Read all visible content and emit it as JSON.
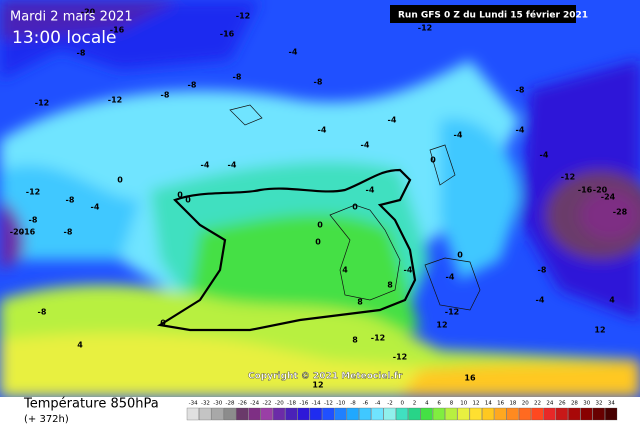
{
  "header": {
    "date": "Mardi 2 mars 2021",
    "time": "13:00 locale",
    "run": "Run GFS 0 Z du Lundi 15 février 2021"
  },
  "footer": {
    "title": "Température 850hPa",
    "subtitle": "(+ 372h)"
  },
  "copyright": "Copyright © 2021 Meteociel.fr",
  "legend": {
    "ticks": [
      -34,
      -32,
      -30,
      -28,
      -26,
      -24,
      -22,
      -20,
      -18,
      -16,
      -14,
      -12,
      -10,
      -8,
      -6,
      -4,
      -2,
      0,
      2,
      4,
      6,
      8,
      10,
      12,
      14,
      16,
      18,
      20,
      22,
      24,
      26,
      28,
      30,
      32,
      34
    ],
    "colors": [
      "#e0e0e0",
      "#c4c4c4",
      "#a8a8a8",
      "#8c8c8c",
      "#6a3a6a",
      "#7e2f84",
      "#9a3fa6",
      "#6c2ba8",
      "#4a22b8",
      "#2e18d8",
      "#1f2cf0",
      "#2050ff",
      "#2080ff",
      "#20a8ff",
      "#40c8ff",
      "#70e4ff",
      "#90f0ec",
      "#40e0c0",
      "#28d488",
      "#44e044",
      "#80ee40",
      "#b8f040",
      "#e8f040",
      "#ffe030",
      "#ffc820",
      "#ffa820",
      "#ff8a20",
      "#ff6a20",
      "#ff4820",
      "#e82828",
      "#c81818",
      "#a80808",
      "#880000",
      "#680000",
      "#480000"
    ]
  },
  "map_labels": [
    -20,
    -16,
    -12,
    -16,
    -12,
    -8,
    -12,
    -12,
    -8,
    -8,
    -8,
    -4,
    -8,
    -4,
    -4,
    -4,
    -4,
    0,
    -4,
    -8,
    -8,
    -8,
    -12,
    -20,
    -16,
    -8,
    0,
    0,
    0,
    -4,
    -4,
    0,
    0,
    -4,
    -8,
    -4,
    -4,
    -16,
    -20,
    -24,
    -28,
    -12,
    -8,
    -4,
    4,
    0,
    -4,
    -4,
    -12,
    8,
    8,
    12,
    12,
    16,
    12,
    -12,
    -12,
    4,
    0,
    0,
    4,
    8
  ]
}
